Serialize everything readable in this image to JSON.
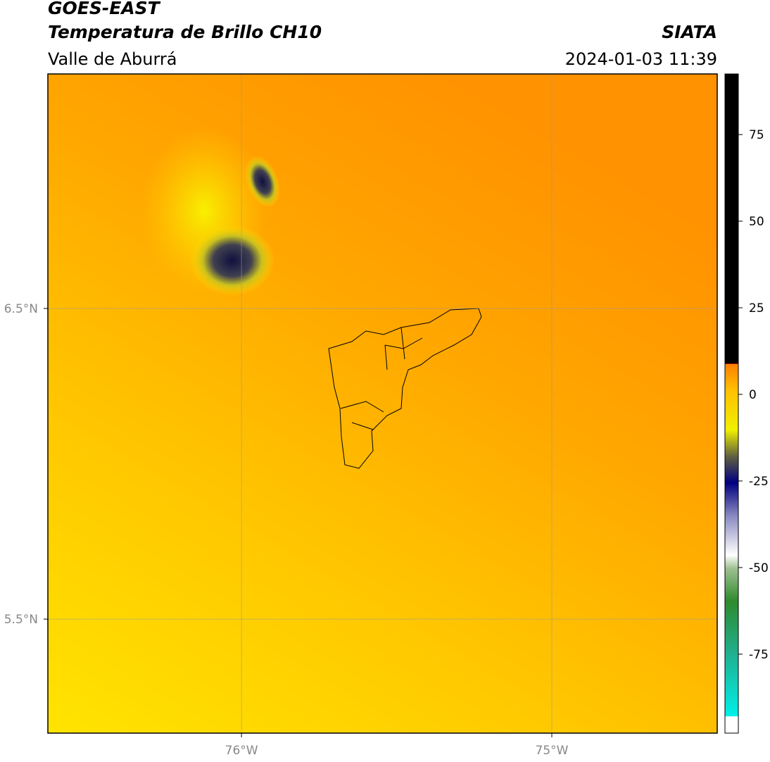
{
  "header": {
    "title": "GOES-EAST",
    "subtitle": "Temperatura de Brillo CH10",
    "region": "Valle de Aburrá",
    "source": "SIATA",
    "datetime": "2024-01-03 11:39"
  },
  "map": {
    "xlim": [
      -76.624,
      -74.467
    ],
    "ylim": [
      5.133,
      7.255
    ],
    "xticks": [
      {
        "value": -76,
        "label": "76°W"
      },
      {
        "value": -75,
        "label": "75°W"
      }
    ],
    "yticks": [
      {
        "value": 6.5,
        "label": "6.5°N"
      },
      {
        "value": 5.5,
        "label": "5.5°N"
      }
    ]
  },
  "colorbar": {
    "lim": [
      -97.8,
      92.5
    ],
    "ticks": [
      75,
      50,
      25,
      0,
      -25,
      -50,
      -75
    ]
  }
}
